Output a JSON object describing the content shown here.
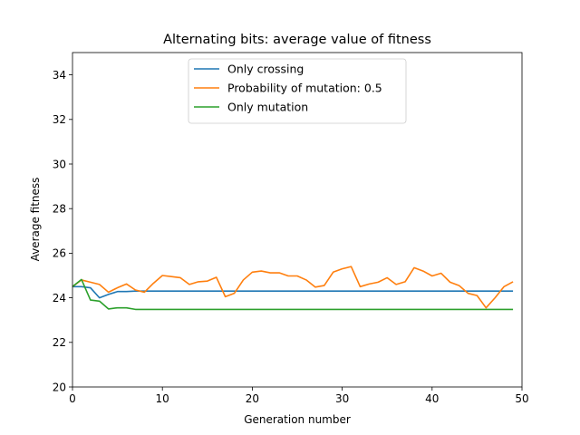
{
  "chart_data": {
    "type": "line",
    "title": "Alternating bits: average value of fitness",
    "xlabel": "Generation number",
    "ylabel": "Average fitness",
    "xlim": [
      0,
      50
    ],
    "ylim": [
      20,
      35
    ],
    "xticks": [
      0,
      10,
      20,
      30,
      40,
      50
    ],
    "yticks": [
      20,
      22,
      24,
      26,
      28,
      30,
      32,
      34
    ],
    "grid": false,
    "legend_position": "top-center",
    "x": [
      0,
      1,
      2,
      3,
      4,
      5,
      6,
      7,
      8,
      9,
      10,
      11,
      12,
      13,
      14,
      15,
      16,
      17,
      18,
      19,
      20,
      21,
      22,
      23,
      24,
      25,
      26,
      27,
      28,
      29,
      30,
      31,
      32,
      33,
      34,
      35,
      36,
      37,
      38,
      39,
      40,
      41,
      42,
      43,
      44,
      45,
      46,
      47,
      48,
      49
    ],
    "series": [
      {
        "name": "Only crossing",
        "color": "#1f77b4",
        "values": [
          24.5,
          24.5,
          24.45,
          24.0,
          24.15,
          24.28,
          24.28,
          24.3,
          24.3,
          24.3,
          24.3,
          24.3,
          24.3,
          24.3,
          24.3,
          24.3,
          24.3,
          24.3,
          24.3,
          24.3,
          24.3,
          24.3,
          24.3,
          24.3,
          24.3,
          24.3,
          24.3,
          24.3,
          24.3,
          24.3,
          24.3,
          24.3,
          24.3,
          24.3,
          24.3,
          24.3,
          24.3,
          24.3,
          24.3,
          24.3,
          24.3,
          24.3,
          24.3,
          24.3,
          24.3,
          24.3,
          24.3,
          24.3,
          24.3,
          24.3
        ]
      },
      {
        "name": "Probability of mutation: 0.5",
        "color": "#ff7f0e",
        "values": [
          24.5,
          24.8,
          24.7,
          24.6,
          24.25,
          24.45,
          24.62,
          24.35,
          24.25,
          24.65,
          25.0,
          24.95,
          24.9,
          24.6,
          24.72,
          24.75,
          24.92,
          24.05,
          24.2,
          24.8,
          25.15,
          25.2,
          25.12,
          25.12,
          24.98,
          24.98,
          24.8,
          24.48,
          24.55,
          25.15,
          25.3,
          25.4,
          24.5,
          24.62,
          24.7,
          24.9,
          24.6,
          24.72,
          25.35,
          25.2,
          24.98,
          25.1,
          24.7,
          24.55,
          24.2,
          24.1,
          23.55,
          24.0,
          24.5,
          24.72
        ]
      },
      {
        "name": "Only mutation",
        "color": "#2ca02c",
        "values": [
          24.5,
          24.82,
          23.9,
          23.85,
          23.5,
          23.55,
          23.55,
          23.48,
          23.48,
          23.48,
          23.48,
          23.48,
          23.48,
          23.48,
          23.48,
          23.48,
          23.48,
          23.48,
          23.48,
          23.48,
          23.48,
          23.48,
          23.48,
          23.48,
          23.48,
          23.48,
          23.48,
          23.48,
          23.48,
          23.48,
          23.48,
          23.48,
          23.48,
          23.48,
          23.48,
          23.48,
          23.48,
          23.48,
          23.48,
          23.48,
          23.48,
          23.48,
          23.48,
          23.48,
          23.48,
          23.48,
          23.48,
          23.48,
          23.48,
          23.48
        ]
      }
    ]
  }
}
